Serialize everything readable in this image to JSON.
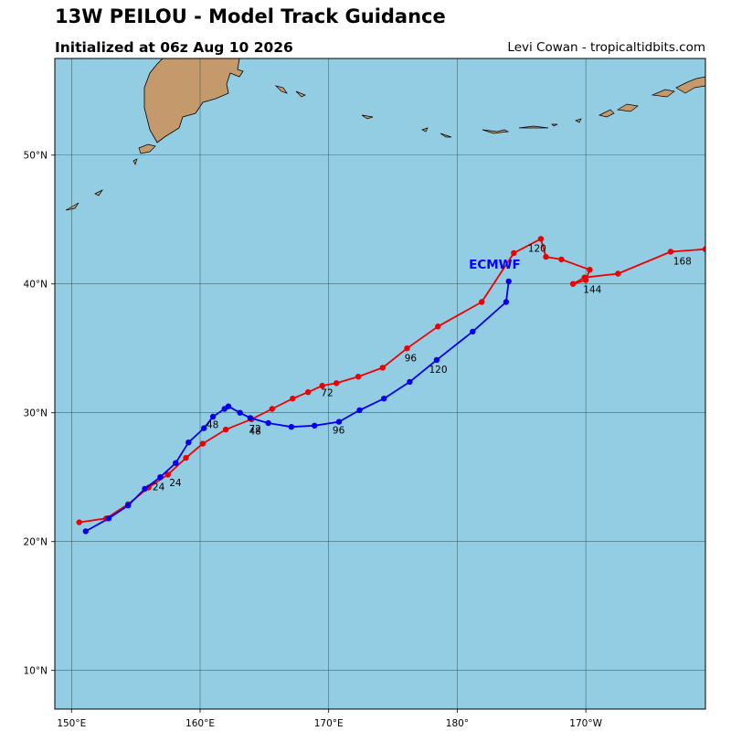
{
  "header": {
    "title": "13W PEILOU - Model Track Guidance",
    "subtitle": "Initialized at 06z Aug 10 2026",
    "credit": "Levi Cowan - tropicaltidbits.com"
  },
  "map": {
    "extent": {
      "lon_min": 148.7,
      "lon_max": 199.3,
      "lat_min": 7.0,
      "lat_max": 57.5
    },
    "ocean_color": "#93cde3",
    "land_color": "#c49a6c",
    "grid_color": "#2f4f4f",
    "lon_ticks": [
      {
        "lon": 150,
        "label": "150°E"
      },
      {
        "lon": 160,
        "label": "160°E"
      },
      {
        "lon": 170,
        "label": "170°E"
      },
      {
        "lon": 180,
        "label": "180°"
      },
      {
        "lon": 190,
        "label": "170°W"
      }
    ],
    "lat_ticks": [
      {
        "lat": 10,
        "label": "10°N"
      },
      {
        "lat": 20,
        "label": "20°N"
      },
      {
        "lat": 30,
        "label": "30°N"
      },
      {
        "lat": 40,
        "label": "40°N"
      },
      {
        "lat": 50,
        "label": "50°N"
      }
    ],
    "model_label": {
      "text": "ECMWF",
      "lon": 180.9,
      "lat": 41.2,
      "color": "#0000ff"
    }
  },
  "tracks": [
    {
      "color": "#ee0000",
      "points": [
        [
          150.6,
          21.5
        ],
        [
          152.7,
          21.8
        ],
        [
          154.4,
          22.9
        ],
        [
          156.0,
          24.2
        ],
        [
          157.5,
          25.2
        ],
        [
          158.9,
          26.5
        ],
        [
          160.2,
          27.6
        ],
        [
          162.0,
          28.7
        ],
        [
          164.0,
          29.5
        ],
        [
          165.6,
          30.3
        ],
        [
          167.2,
          31.1
        ],
        [
          168.4,
          31.6
        ],
        [
          169.5,
          32.1
        ],
        [
          170.6,
          32.3
        ],
        [
          172.3,
          32.8
        ],
        [
          174.2,
          33.5
        ],
        [
          176.1,
          35.0
        ],
        [
          178.5,
          36.7
        ],
        [
          181.9,
          38.6
        ],
        [
          184.4,
          42.4
        ],
        [
          186.5,
          43.5
        ],
        [
          186.9,
          42.1
        ],
        [
          188.1,
          41.9
        ],
        [
          190.3,
          41.1
        ],
        [
          190.0,
          40.3
        ],
        [
          189.0,
          40.0
        ],
        [
          189.9,
          40.5
        ],
        [
          192.5,
          40.8
        ],
        [
          196.6,
          42.5
        ],
        [
          199.3,
          42.7
        ]
      ],
      "labels": [
        {
          "text": "24",
          "lon": 157.6,
          "lat": 24.3
        },
        {
          "text": "48",
          "lon": 163.8,
          "lat": 28.3
        },
        {
          "text": "72",
          "lon": 169.4,
          "lat": 31.3
        },
        {
          "text": "96",
          "lon": 175.9,
          "lat": 34.0
        },
        {
          "text": "120",
          "lon": 185.5,
          "lat": 42.5
        },
        {
          "text": "144",
          "lon": 189.8,
          "lat": 39.3
        },
        {
          "text": "168",
          "lon": 196.8,
          "lat": 41.5
        }
      ]
    },
    {
      "color": "#0000ee",
      "points": [
        [
          151.1,
          20.8
        ],
        [
          152.9,
          21.8
        ],
        [
          154.4,
          22.8
        ],
        [
          155.7,
          24.1
        ],
        [
          156.9,
          25.0
        ],
        [
          158.1,
          26.1
        ],
        [
          159.1,
          27.7
        ],
        [
          160.3,
          28.8
        ],
        [
          161.0,
          29.7
        ],
        [
          161.9,
          30.3
        ],
        [
          162.2,
          30.5
        ],
        [
          163.1,
          30.0
        ],
        [
          163.9,
          29.6
        ],
        [
          165.3,
          29.2
        ],
        [
          167.1,
          28.9
        ],
        [
          168.9,
          29.0
        ],
        [
          170.8,
          29.3
        ],
        [
          172.4,
          30.2
        ],
        [
          174.3,
          31.1
        ],
        [
          176.3,
          32.4
        ],
        [
          178.4,
          34.1
        ],
        [
          181.2,
          36.3
        ],
        [
          183.8,
          38.6
        ],
        [
          184.0,
          40.2
        ]
      ],
      "labels": [
        {
          "text": "24",
          "lon": 156.3,
          "lat": 24.0
        },
        {
          "text": "48",
          "lon": 160.5,
          "lat": 28.8
        },
        {
          "text": "72",
          "lon": 163.8,
          "lat": 28.5
        },
        {
          "text": "96",
          "lon": 170.3,
          "lat": 28.4
        },
        {
          "text": "120",
          "lon": 177.8,
          "lat": 33.1
        }
      ]
    }
  ]
}
